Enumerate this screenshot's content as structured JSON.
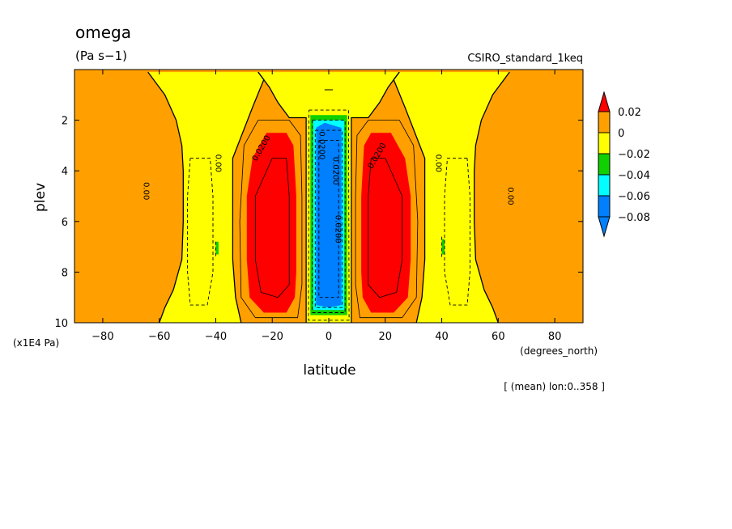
{
  "chart_data": {
    "type": "contour",
    "title": "omega",
    "units": "(Pa s−1)",
    "model_label": "CSIRO_standard_1keq",
    "xlabel": "latitude",
    "x_units_label": "(degrees_north)",
    "ylabel": "plev",
    "y_scale_label": "(x1E4 Pa)",
    "footnote": "[ (mean) lon:0..358 ]",
    "xlim": [
      -90,
      90
    ],
    "ylim": [
      10,
      0
    ],
    "y_axis_inverted": true,
    "x_ticks": [
      {
        "value": -80,
        "label": "−80"
      },
      {
        "value": -60,
        "label": "−60"
      },
      {
        "value": -40,
        "label": "−40"
      },
      {
        "value": -20,
        "label": "−20"
      },
      {
        "value": 0,
        "label": "0"
      },
      {
        "value": 20,
        "label": "20"
      },
      {
        "value": 40,
        "label": "40"
      },
      {
        "value": 60,
        "label": "60"
      },
      {
        "value": 80,
        "label": "80"
      }
    ],
    "y_ticks": [
      {
        "value": 2,
        "label": "2"
      },
      {
        "value": 4,
        "label": "4"
      },
      {
        "value": 6,
        "label": "6"
      },
      {
        "value": 8,
        "label": "8"
      },
      {
        "value": 10,
        "label": "10"
      }
    ],
    "colorbar": {
      "levels": [
        {
          "label": "0.02",
          "color": "#ffa000"
        },
        {
          "label": "0",
          "color": "#ffff00"
        },
        {
          "label": "−0.02",
          "color": "#10d000"
        },
        {
          "label": "−0.04",
          "color": "#00ffff"
        },
        {
          "label": "−0.06",
          "color": "#0080ff"
        },
        {
          "label": "−0.08",
          "color": null
        }
      ],
      "top_arrow_color": "#ff0000",
      "bottom_arrow_color": "#0080ff"
    },
    "fill_regions": [
      {
        "name": "orange-background",
        "color": "#ffa000",
        "polygon": [
          [
            -90,
            0
          ],
          [
            90,
            0
          ],
          [
            90,
            10
          ],
          [
            -90,
            10
          ]
        ]
      },
      {
        "name": "yellow-band-south",
        "color": "#ffff00",
        "polygon": [
          [
            -90,
            0.1
          ],
          [
            -64,
            0.1
          ],
          [
            -58,
            1.0
          ],
          [
            -54,
            2.0
          ],
          [
            -52,
            3.0
          ],
          [
            -51.5,
            4.0
          ],
          [
            -51.5,
            6.0
          ],
          [
            -52,
            7.5
          ],
          [
            -55,
            8.7
          ],
          [
            -58,
            9.4
          ],
          [
            -60,
            10
          ],
          [
            -31,
            10
          ],
          [
            -33,
            9.0
          ],
          [
            -34,
            7.5
          ],
          [
            -34,
            3.5
          ],
          [
            -27,
            1.5
          ],
          [
            -23,
            0.4
          ],
          [
            -25,
            0.1
          ],
          [
            -90,
            0.1
          ]
        ]
      },
      {
        "name": "yellow-band-north",
        "color": "#ffff00",
        "polygon": [
          [
            90,
            0.1
          ],
          [
            64,
            0.1
          ],
          [
            58,
            1.0
          ],
          [
            54,
            2.0
          ],
          [
            52,
            3.0
          ],
          [
            51.5,
            4.0
          ],
          [
            51.5,
            6.0
          ],
          [
            52,
            7.5
          ],
          [
            55,
            8.7
          ],
          [
            58,
            9.4
          ],
          [
            60,
            10
          ],
          [
            31,
            10
          ],
          [
            33,
            9.0
          ],
          [
            34,
            7.5
          ],
          [
            34,
            3.5
          ],
          [
            27,
            1.5
          ],
          [
            23,
            0.4
          ],
          [
            25,
            0.1
          ],
          [
            90,
            0.1
          ]
        ]
      },
      {
        "name": "yellow-top-center",
        "color": "#ffff00",
        "polygon": [
          [
            -25,
            0.1
          ],
          [
            25,
            0.1
          ],
          [
            21,
            0.7
          ],
          [
            18,
            1.3
          ],
          [
            14,
            1.9
          ],
          [
            -14,
            1.9
          ],
          [
            -18,
            1.3
          ],
          [
            -21,
            0.7
          ]
        ]
      },
      {
        "name": "yellow-center-column",
        "color": "#ffff00",
        "polygon": [
          [
            -8,
            1.6
          ],
          [
            8,
            1.6
          ],
          [
            8,
            10
          ],
          [
            -8,
            10
          ]
        ]
      },
      {
        "name": "red-core-south",
        "color": "#ff0000",
        "polygon": [
          [
            -22,
            2.5
          ],
          [
            -15,
            2.5
          ],
          [
            -12.5,
            3.0
          ],
          [
            -11.5,
            5.0
          ],
          [
            -11.5,
            8.0
          ],
          [
            -12,
            9.0
          ],
          [
            -15,
            9.6
          ],
          [
            -23,
            9.6
          ],
          [
            -28,
            9.0
          ],
          [
            -29,
            7.5
          ],
          [
            -29,
            5.0
          ],
          [
            -27,
            3.5
          ]
        ]
      },
      {
        "name": "red-core-north",
        "color": "#ff0000",
        "polygon": [
          [
            22,
            2.5
          ],
          [
            15,
            2.5
          ],
          [
            12.5,
            3.0
          ],
          [
            11.5,
            5.0
          ],
          [
            11.5,
            8.0
          ],
          [
            12,
            9.0
          ],
          [
            15,
            9.6
          ],
          [
            23,
            9.6
          ],
          [
            28,
            9.0
          ],
          [
            29,
            7.5
          ],
          [
            29,
            5.0
          ],
          [
            27,
            3.5
          ]
        ]
      },
      {
        "name": "green-equatorial-column",
        "color": "#10d000",
        "polygon": [
          [
            -6.5,
            1.8
          ],
          [
            6.5,
            1.8
          ],
          [
            6.5,
            9.7
          ],
          [
            -6.5,
            9.7
          ]
        ]
      },
      {
        "name": "cyan-equatorial-column",
        "color": "#00ffff",
        "polygon": [
          [
            -5.5,
            2.0
          ],
          [
            5.5,
            2.0
          ],
          [
            5.5,
            9.5
          ],
          [
            -5.5,
            9.5
          ]
        ]
      },
      {
        "name": "blue-equatorial-column",
        "color": "#0080ff",
        "polygon": [
          [
            -4.5,
            2.3
          ],
          [
            -1.5,
            2.1
          ],
          [
            4.5,
            2.3
          ],
          [
            4.5,
            9.3
          ],
          [
            0,
            9.4
          ],
          [
            -4.5,
            9.3
          ]
        ]
      },
      {
        "name": "green-patch-south",
        "color": "#10d000",
        "polygon": [
          [
            -40,
            6.8
          ],
          [
            -39,
            6.8
          ],
          [
            -39,
            7.3
          ],
          [
            -40,
            7.3
          ]
        ]
      },
      {
        "name": "green-patch-north",
        "color": "#10d000",
        "polygon": [
          [
            40,
            6.7
          ],
          [
            41,
            6.7
          ],
          [
            41,
            7.3
          ],
          [
            40,
            7.3
          ]
        ]
      }
    ],
    "contour_lines": [
      {
        "style": "solid",
        "width": 1.3,
        "points": [
          [
            -64,
            0.1
          ],
          [
            -58,
            1.0
          ],
          [
            -54,
            2.0
          ],
          [
            -52,
            3.0
          ],
          [
            -51.5,
            4.0
          ],
          [
            -51.5,
            6.0
          ],
          [
            -52,
            7.5
          ],
          [
            -55,
            8.7
          ],
          [
            -58,
            9.4
          ],
          [
            -60,
            10
          ]
        ]
      },
      {
        "style": "solid",
        "width": 1.3,
        "points": [
          [
            64,
            0.1
          ],
          [
            58,
            1.0
          ],
          [
            54,
            2.0
          ],
          [
            52,
            3.0
          ],
          [
            51.5,
            4.0
          ],
          [
            51.5,
            6.0
          ],
          [
            52,
            7.5
          ],
          [
            55,
            8.7
          ],
          [
            58,
            9.4
          ],
          [
            60,
            10
          ]
        ]
      },
      {
        "style": "solid",
        "width": 1.3,
        "points": [
          [
            -25,
            0.1
          ],
          [
            -23,
            0.4
          ],
          [
            -27,
            1.5
          ],
          [
            -34,
            3.5
          ],
          [
            -34,
            7.5
          ],
          [
            -33,
            9.0
          ],
          [
            -31,
            10
          ]
        ]
      },
      {
        "style": "solid",
        "width": 1.3,
        "points": [
          [
            25,
            0.1
          ],
          [
            23,
            0.4
          ],
          [
            27,
            1.5
          ],
          [
            34,
            3.5
          ],
          [
            34,
            7.5
          ],
          [
            33,
            9.0
          ],
          [
            31,
            10
          ]
        ]
      },
      {
        "style": "solid",
        "width": 1.3,
        "points": [
          [
            -25,
            0.1
          ],
          [
            -21,
            0.7
          ],
          [
            -18,
            1.3
          ],
          [
            -14,
            1.9
          ],
          [
            -8,
            1.9
          ],
          [
            -8,
            10
          ]
        ]
      },
      {
        "style": "solid",
        "width": 1.3,
        "points": [
          [
            25,
            0.1
          ],
          [
            21,
            0.7
          ],
          [
            18,
            1.3
          ],
          [
            14,
            1.9
          ],
          [
            8,
            1.9
          ],
          [
            8,
            10
          ]
        ]
      },
      {
        "style": "solid",
        "width": 0.8,
        "points": [
          [
            -25,
            2.0
          ],
          [
            -14,
            2.0
          ],
          [
            -10,
            2.6
          ],
          [
            -9.5,
            5.0
          ],
          [
            -9.5,
            8.5
          ],
          [
            -11,
            9.8
          ],
          [
            -26,
            9.8
          ],
          [
            -31,
            9.0
          ],
          [
            -31.5,
            6.0
          ],
          [
            -30,
            3.0
          ],
          [
            -25,
            2.0
          ]
        ]
      },
      {
        "style": "solid",
        "width": 0.8,
        "points": [
          [
            25,
            2.0
          ],
          [
            14,
            2.0
          ],
          [
            10,
            2.6
          ],
          [
            9.5,
            5.0
          ],
          [
            9.5,
            8.5
          ],
          [
            11,
            9.8
          ],
          [
            26,
            9.8
          ],
          [
            31,
            9.0
          ],
          [
            31.5,
            6.0
          ],
          [
            30,
            3.0
          ],
          [
            25,
            2.0
          ]
        ]
      },
      {
        "style": "solid",
        "width": 0.8,
        "points": [
          [
            -20,
            3.5
          ],
          [
            -15,
            3.5
          ],
          [
            -14,
            5.0
          ],
          [
            -14,
            8.5
          ],
          [
            -18,
            9.0
          ],
          [
            -24,
            8.8
          ],
          [
            -26,
            7.5
          ],
          [
            -26,
            5.0
          ],
          [
            -20,
            3.5
          ]
        ]
      },
      {
        "style": "solid",
        "width": 0.8,
        "points": [
          [
            20,
            3.5
          ],
          [
            15,
            3.5
          ],
          [
            14,
            5.0
          ],
          [
            14,
            8.5
          ],
          [
            18,
            9.0
          ],
          [
            24,
            8.8
          ],
          [
            26,
            7.5
          ],
          [
            26,
            5.0
          ],
          [
            20,
            3.5
          ]
        ]
      },
      {
        "style": "dashed",
        "width": 0.9,
        "points": [
          [
            -49,
            3.5
          ],
          [
            -42,
            3.5
          ],
          [
            -41,
            5.0
          ],
          [
            -41,
            8.0
          ],
          [
            -43,
            9.3
          ],
          [
            -49,
            9.3
          ],
          [
            -50,
            8.0
          ],
          [
            -50,
            5.0
          ],
          [
            -49,
            3.5
          ]
        ]
      },
      {
        "style": "dashed",
        "width": 0.9,
        "points": [
          [
            49,
            3.5
          ],
          [
            42,
            3.5
          ],
          [
            41,
            5.0
          ],
          [
            41,
            8.0
          ],
          [
            43,
            9.3
          ],
          [
            49,
            9.3
          ],
          [
            50,
            8.0
          ],
          [
            50,
            5.0
          ],
          [
            49,
            3.5
          ]
        ]
      },
      {
        "style": "dashed",
        "width": 0.9,
        "points": [
          [
            -7,
            1.6
          ],
          [
            7,
            1.6
          ],
          [
            7.2,
            9.9
          ],
          [
            -7.2,
            9.9
          ],
          [
            -7,
            1.6
          ]
        ]
      },
      {
        "style": "dashed",
        "width": 0.9,
        "points": [
          [
            -5.8,
            2.0
          ],
          [
            5.8,
            2.0
          ],
          [
            5.8,
            9.6
          ],
          [
            -5.8,
            9.6
          ],
          [
            -5.8,
            2.0
          ]
        ]
      },
      {
        "style": "dashed",
        "width": 0.9,
        "points": [
          [
            -4.8,
            2.4
          ],
          [
            4.8,
            2.4
          ],
          [
            4.8,
            9.4
          ],
          [
            -4.8,
            9.4
          ],
          [
            -4.8,
            2.4
          ]
        ]
      },
      {
        "style": "dashed",
        "width": 0.9,
        "points": [
          [
            -3.5,
            2.8
          ],
          [
            3.5,
            2.8
          ],
          [
            3.5,
            9.0
          ],
          [
            -3.5,
            9.0
          ],
          [
            -3.5,
            2.8
          ]
        ]
      },
      {
        "style": "dashed",
        "width": 0.9,
        "points": [
          [
            -40,
            6.8
          ],
          [
            -40,
            7.4
          ]
        ]
      },
      {
        "style": "dashed",
        "width": 0.9,
        "points": [
          [
            40,
            6.6
          ],
          [
            40,
            7.4
          ]
        ]
      },
      {
        "style": "solid",
        "width": 1.0,
        "points": [
          [
            -1.5,
            0.8
          ],
          [
            1.5,
            0.8
          ]
        ]
      }
    ],
    "contour_labels": [
      {
        "text": "0.00",
        "lat": -64.5,
        "plev": 4.8,
        "rotate": 90
      },
      {
        "text": "0.00",
        "lat": -39,
        "plev": 3.7,
        "rotate": 90
      },
      {
        "text": "0.0200",
        "lat": -24,
        "plev": 3.1,
        "rotate": -60
      },
      {
        "text": "0.00",
        "lat": 64.5,
        "plev": 5.0,
        "rotate": 90
      },
      {
        "text": "0.00",
        "lat": 39,
        "plev": 3.7,
        "rotate": 90
      },
      {
        "text": "0.0200",
        "lat": 17,
        "plev": 3.4,
        "rotate": -60
      },
      {
        "text": "0.0200",
        "lat": -2.3,
        "plev": 3.0,
        "rotate": 90
      },
      {
        "text": "0.0200",
        "lat": 2.6,
        "plev": 4.0,
        "rotate": 90
      },
      {
        "text": "0.0200",
        "lat": 3.4,
        "plev": 6.3,
        "rotate": 90
      }
    ]
  }
}
